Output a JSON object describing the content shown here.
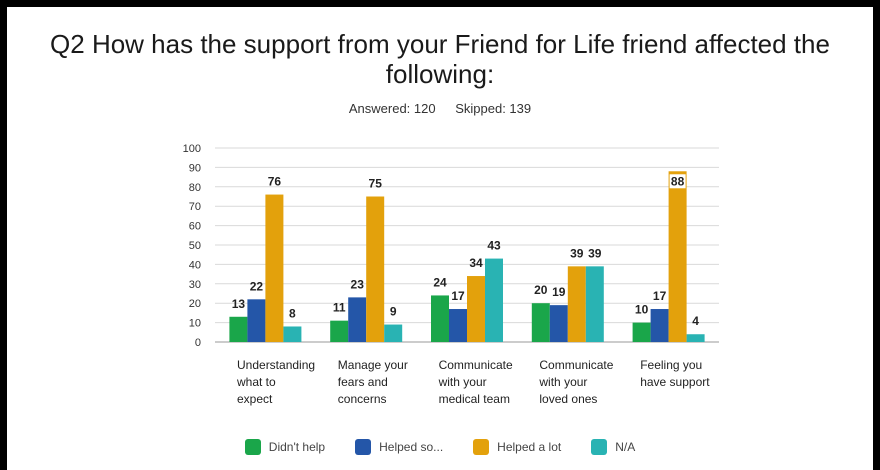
{
  "header": {
    "title": "Q2 How has the support from your Friend for Life friend affected the following:",
    "answered": "Answered: 120",
    "skipped": "Skipped: 139"
  },
  "colors": {
    "didnt_help": "#1aa64a",
    "helped_some": "#2456a8",
    "helped_lot": "#e3a10c",
    "na": "#29b3b3",
    "grid": "#d9d9d9"
  },
  "legend": [
    {
      "label": "Didn't help",
      "color": "#1aa64a"
    },
    {
      "label": "Helped so...",
      "color": "#2456a8"
    },
    {
      "label": "Helped a lot",
      "color": "#e3a10c"
    },
    {
      "label": "N/A",
      "color": "#29b3b3"
    }
  ],
  "chart_data": {
    "type": "bar",
    "title": "Q2 How has the support from your Friend for Life friend affected the following:",
    "categories": [
      [
        "Understanding",
        "what to",
        "expect"
      ],
      [
        "Manage your",
        "fears and",
        "concerns"
      ],
      [
        "Communicate",
        "with your",
        "medical team"
      ],
      [
        "Communicate",
        "with your",
        "loved ones"
      ],
      [
        "Feeling you",
        "have support"
      ]
    ],
    "series": [
      {
        "name": "Didn't help",
        "color": "#1aa64a",
        "values": [
          13,
          11,
          24,
          20,
          10
        ]
      },
      {
        "name": "Helped so...",
        "color": "#2456a8",
        "values": [
          22,
          23,
          17,
          19,
          17
        ]
      },
      {
        "name": "Helped a lot",
        "color": "#e3a10c",
        "values": [
          76,
          75,
          34,
          39,
          88
        ]
      },
      {
        "name": "N/A",
        "color": "#29b3b3",
        "values": [
          8,
          9,
          43,
          39,
          4
        ]
      }
    ],
    "ylim": [
      0,
      100
    ],
    "yticks": [
      0,
      10,
      20,
      30,
      40,
      50,
      60,
      70,
      80,
      90,
      100
    ],
    "grid": true,
    "legend_position": "bottom"
  }
}
